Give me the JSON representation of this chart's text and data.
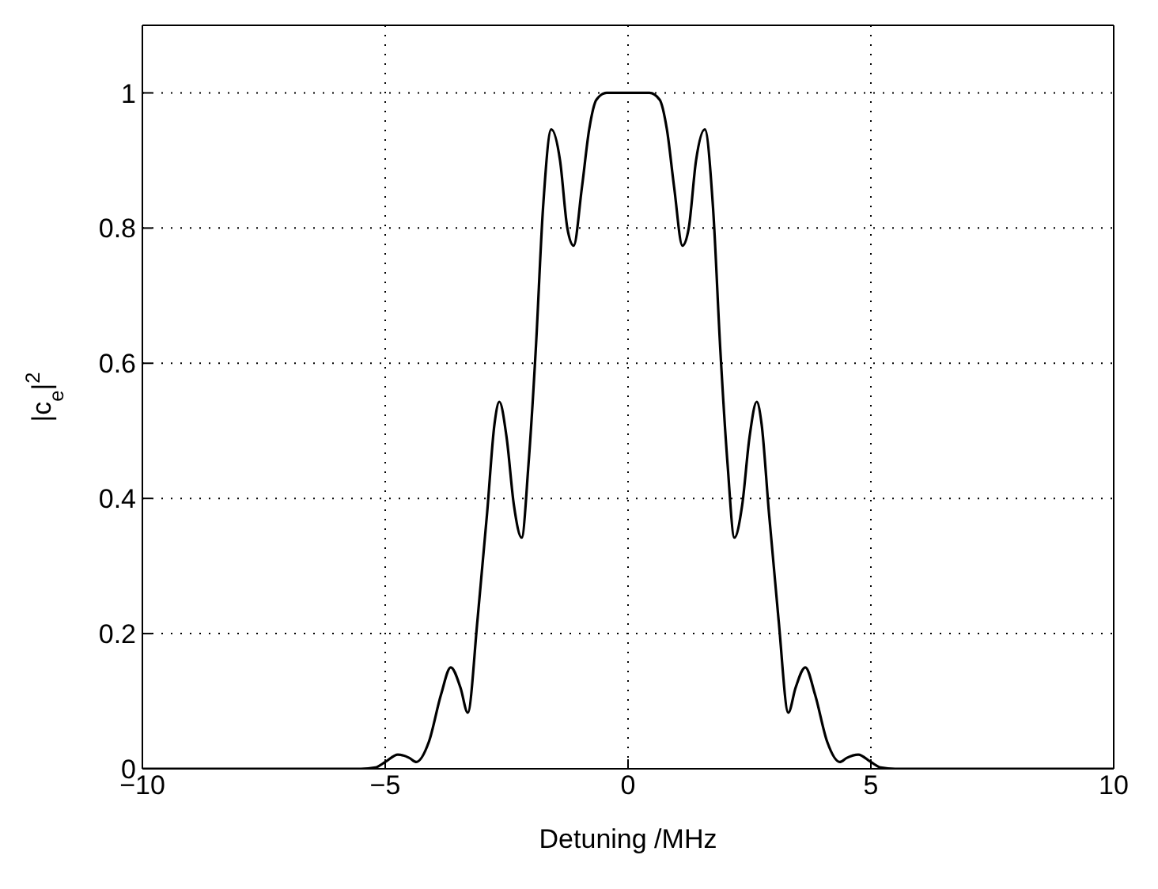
{
  "chart_data": {
    "type": "line",
    "xlabel": "Detuning /MHz",
    "ylabel": "|c$_{e}$|$^{2}$",
    "xlim": [
      -10,
      10
    ],
    "xticks": [
      -10,
      -5,
      0,
      5,
      10
    ],
    "ylim": [
      0,
      1.1
    ],
    "yticks": [
      0,
      0.2,
      0.4,
      0.6,
      0.8,
      1
    ],
    "grid": true,
    "line_style": "solid",
    "marker": "none",
    "series": [
      {
        "color": "#000000",
        "x": [
          -10,
          -6,
          -5.5,
          -5.2,
          -5.0,
          -4.74,
          -4.5,
          -4.36,
          -4.1,
          -3.85,
          -3.65,
          -3.45,
          -3.3,
          -3.1,
          -2.9,
          -2.75,
          -2.65,
          -2.5,
          -2.35,
          -2.19,
          -2.05,
          -1.9,
          -1.75,
          -1.58,
          -1.4,
          -1.25,
          -1.12,
          -0.95,
          -0.8,
          -0.65,
          -0.44,
          0,
          0.44,
          0.65,
          0.8,
          0.95,
          1.12,
          1.25,
          1.4,
          1.58,
          1.75,
          1.9,
          2.05,
          2.19,
          2.35,
          2.5,
          2.65,
          2.75,
          2.9,
          3.1,
          3.3,
          3.45,
          3.65,
          3.85,
          4.1,
          4.36,
          4.5,
          4.74,
          5.0,
          5.2,
          5.5,
          6,
          10
        ],
        "values": [
          0,
          0,
          0,
          0.002,
          0.01,
          0.021,
          0.016,
          0.01,
          0.04,
          0.11,
          0.15,
          0.12,
          0.083,
          0.22,
          0.38,
          0.51,
          0.543,
          0.49,
          0.39,
          0.342,
          0.45,
          0.62,
          0.83,
          0.946,
          0.9,
          0.8,
          0.774,
          0.86,
          0.946,
          0.99,
          1,
          1,
          1,
          0.99,
          0.946,
          0.86,
          0.774,
          0.8,
          0.9,
          0.946,
          0.83,
          0.62,
          0.45,
          0.342,
          0.39,
          0.49,
          0.543,
          0.51,
          0.38,
          0.22,
          0.083,
          0.12,
          0.15,
          0.11,
          0.04,
          0.01,
          0.016,
          0.021,
          0.01,
          0.002,
          0,
          0,
          0
        ]
      }
    ]
  }
}
